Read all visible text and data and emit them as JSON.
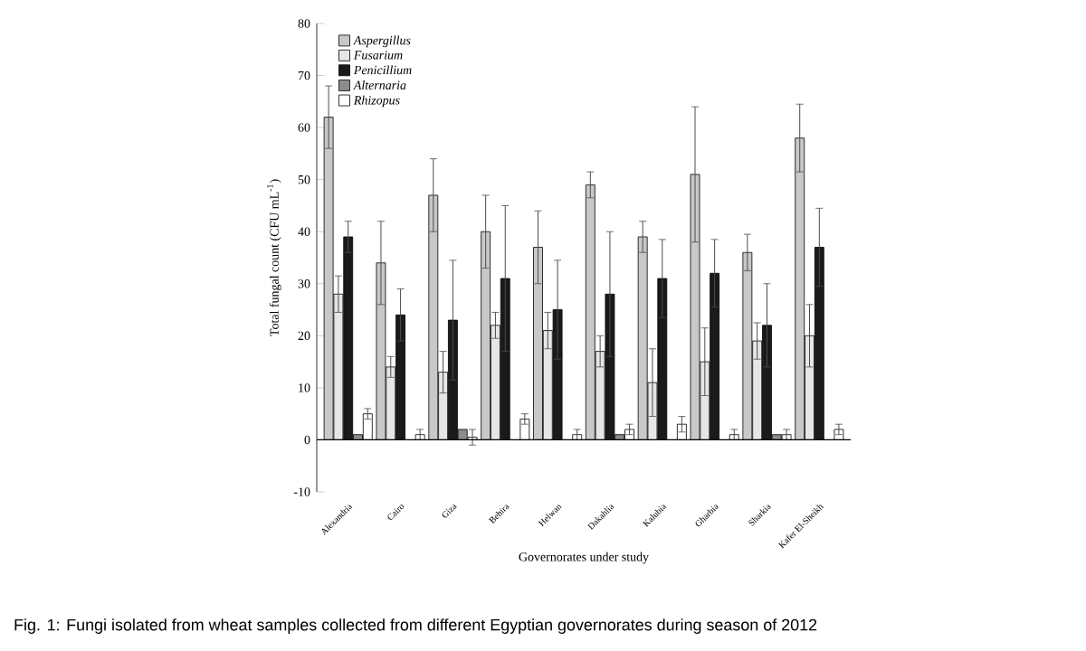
{
  "chart_data": {
    "type": "bar",
    "xlabel": "Governorates under study",
    "ylabel": "Total fungal count (CFU mL$^{-1}$)",
    "annotations": [
      "Fig. 1: Fungi isolated from wheat samples collected from different Egyptian governorates during season of 2012"
    ],
    "categories": [
      "Alexandria",
      "Cairo",
      "Giza",
      "Behira",
      "Helwan",
      "Dakahlia",
      "Kalubia",
      "Gharbia",
      "Sharkia",
      "Kafer El-Sheikh"
    ],
    "series": [
      {
        "name": "Aspergillus",
        "color": "#c8c8c8",
        "values": [
          62,
          34,
          47,
          40,
          37,
          49,
          39,
          51,
          36,
          58
        ],
        "errors": [
          6,
          8,
          7,
          7,
          7,
          2.5,
          3,
          13,
          3.5,
          6.5
        ]
      },
      {
        "name": "Fusarium",
        "color": "#e6e6e6",
        "values": [
          28,
          14,
          13,
          22,
          21,
          17,
          11,
          15,
          19,
          20
        ],
        "errors": [
          3.5,
          2,
          4,
          2.5,
          3.5,
          3,
          6.5,
          6.5,
          3.5,
          6
        ]
      },
      {
        "name": "Penicillium",
        "color": "#1a1a1a",
        "values": [
          39,
          24,
          23,
          31,
          25,
          28,
          31,
          32,
          22,
          37
        ],
        "errors": [
          3,
          5,
          11.5,
          14,
          9.5,
          12,
          7.5,
          6.5,
          8,
          7.5
        ]
      },
      {
        "name": "Alternaria",
        "color": "#8c8c8c",
        "values": [
          1,
          null,
          2,
          null,
          null,
          1,
          null,
          null,
          1,
          null
        ],
        "errors": [
          null,
          null,
          null,
          null,
          null,
          null,
          null,
          null,
          null,
          null
        ]
      },
      {
        "name": "Rhizopus",
        "color": "#ffffff",
        "values": [
          5,
          1,
          0.5,
          4,
          1,
          2,
          3,
          1,
          1,
          2
        ],
        "errors": [
          1,
          1,
          1.5,
          1,
          1,
          1,
          1.5,
          1,
          1,
          1
        ]
      }
    ],
    "ylim": [
      -10,
      80
    ],
    "yticks": [
      -10,
      0,
      10,
      20,
      30,
      40,
      50,
      60,
      70,
      80
    ],
    "grid": false,
    "ref_lines": [
      {
        "axis": "y",
        "value": 0,
        "color": "#000000"
      }
    ],
    "legend": "top left"
  }
}
